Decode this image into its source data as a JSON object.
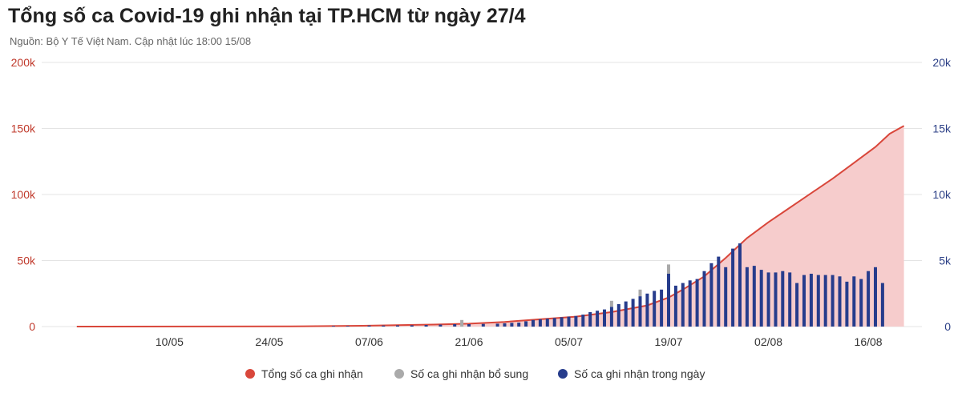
{
  "title": "Tổng số ca Covid-19 ghi nhận tại TP.HCM từ ngày 27/4",
  "subtitle": "Nguồn: Bộ Y Tế Việt Nam. Cập nhật lúc 18:00 15/08",
  "colors": {
    "cumulative_line": "#d9473b",
    "cumulative_fill": "#f6cccc",
    "supplementary": "#aaaaaa",
    "daily": "#263c8c",
    "grid": "#e4e4e4"
  },
  "chart_data": {
    "type": "bar+area",
    "title": "Tổng số ca Covid-19 ghi nhận tại TP.HCM từ ngày 27/4",
    "x_start": "27/04",
    "x_end": "16/08",
    "x_tick_labels": [
      "10/05",
      "24/05",
      "07/06",
      "21/06",
      "05/07",
      "19/07",
      "02/08",
      "16/08"
    ],
    "x_tick_days": [
      13,
      27,
      41,
      55,
      69,
      83,
      97,
      111
    ],
    "y_left": {
      "ticks": [
        "0",
        "50k",
        "100k",
        "150k",
        "200k"
      ],
      "range": [
        0,
        200000
      ]
    },
    "y_right": {
      "ticks": [
        "0",
        "5k",
        "10k",
        "15k",
        "20k"
      ],
      "range": [
        0,
        20000
      ]
    },
    "grid": true,
    "legend_position": "bottom",
    "series": [
      {
        "name": "Tổng số ca ghi nhận",
        "type": "area",
        "axis": "left",
        "points": [
          [
            0,
            0
          ],
          [
            30,
            150
          ],
          [
            40,
            600
          ],
          [
            50,
            1500
          ],
          [
            55,
            2200
          ],
          [
            60,
            3500
          ],
          [
            65,
            5500
          ],
          [
            70,
            7500
          ],
          [
            75,
            11000
          ],
          [
            80,
            16000
          ],
          [
            83,
            22000
          ],
          [
            85,
            28000
          ],
          [
            88,
            38000
          ],
          [
            91,
            52000
          ],
          [
            94,
            67000
          ],
          [
            97,
            79000
          ],
          [
            100,
            90000
          ],
          [
            103,
            101000
          ],
          [
            106,
            112000
          ],
          [
            109,
            124000
          ],
          [
            112,
            136000
          ],
          [
            114,
            146000
          ],
          [
            116,
            152000
          ]
        ]
      },
      {
        "name": "Số ca ghi nhận bổ sung",
        "type": "bar",
        "axis": "right",
        "points": [
          [
            54,
            500
          ],
          [
            75,
            450
          ],
          [
            79,
            500
          ],
          [
            83,
            700
          ]
        ]
      },
      {
        "name": "Số ca ghi nhận trong ngày",
        "type": "bar",
        "axis": "right",
        "points": [
          [
            36,
            50
          ],
          [
            38,
            50
          ],
          [
            41,
            80
          ],
          [
            43,
            80
          ],
          [
            45,
            90
          ],
          [
            47,
            100
          ],
          [
            49,
            120
          ],
          [
            51,
            150
          ],
          [
            53,
            180
          ],
          [
            55,
            180
          ],
          [
            57,
            200
          ],
          [
            59,
            220
          ],
          [
            60,
            250
          ],
          [
            61,
            280
          ],
          [
            62,
            300
          ],
          [
            63,
            400
          ],
          [
            64,
            500
          ],
          [
            65,
            550
          ],
          [
            66,
            600
          ],
          [
            67,
            650
          ],
          [
            68,
            700
          ],
          [
            69,
            750
          ],
          [
            70,
            800
          ],
          [
            71,
            900
          ],
          [
            72,
            1100
          ],
          [
            73,
            1200
          ],
          [
            74,
            1300
          ],
          [
            75,
            1500
          ],
          [
            76,
            1700
          ],
          [
            77,
            1900
          ],
          [
            78,
            2100
          ],
          [
            79,
            2300
          ],
          [
            80,
            2500
          ],
          [
            81,
            2700
          ],
          [
            82,
            2800
          ],
          [
            83,
            4000
          ],
          [
            84,
            3100
          ],
          [
            85,
            3300
          ],
          [
            86,
            3500
          ],
          [
            87,
            3600
          ],
          [
            88,
            4200
          ],
          [
            89,
            4800
          ],
          [
            90,
            5300
          ],
          [
            91,
            4500
          ],
          [
            92,
            5900
          ],
          [
            93,
            6300
          ],
          [
            94,
            4500
          ],
          [
            95,
            4600
          ],
          [
            96,
            4300
          ],
          [
            97,
            4100
          ],
          [
            98,
            4100
          ],
          [
            99,
            4200
          ],
          [
            100,
            4100
          ],
          [
            101,
            3300
          ],
          [
            102,
            3900
          ],
          [
            103,
            4000
          ],
          [
            104,
            3900
          ],
          [
            105,
            3900
          ],
          [
            106,
            3900
          ],
          [
            107,
            3800
          ],
          [
            108,
            3400
          ],
          [
            109,
            3800
          ],
          [
            110,
            3600
          ],
          [
            111,
            4200
          ],
          [
            112,
            4500
          ],
          [
            113,
            3300
          ]
        ]
      }
    ]
  }
}
